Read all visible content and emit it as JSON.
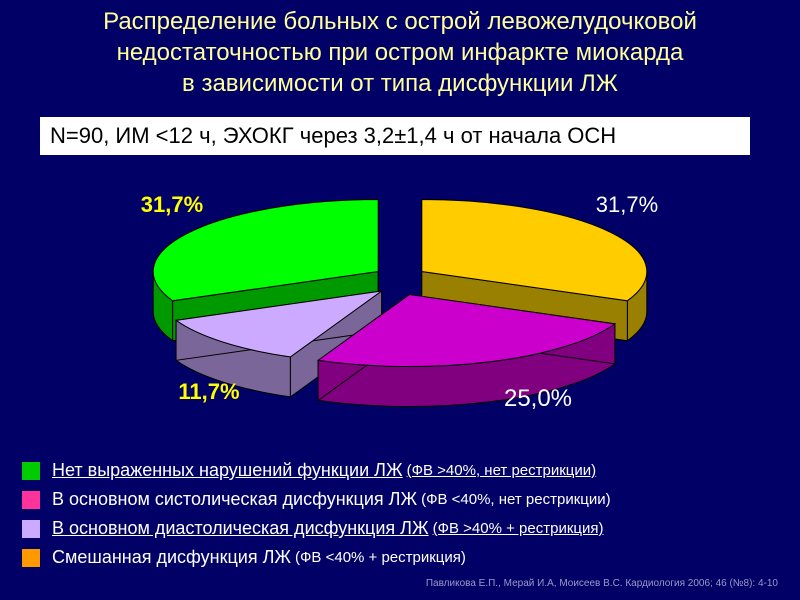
{
  "title_lines": [
    "Распределение больных с острой левожелудочковой",
    "недостаточностью при остром инфаркте миокарда",
    "в зависимости от типа дисфункции ЛЖ"
  ],
  "subtitle": "N=90, ИМ <12 ч, ЭХОКГ через 3,2±1,4 ч от начала ОСН",
  "chart_data": {
    "type": "pie",
    "style": "3d-exploded",
    "title": "",
    "slices": [
      {
        "label": "Нет выраженных нарушений функции ЛЖ (ФВ >40%, нет рестрикции)",
        "value": 31.7,
        "display": "31,7%",
        "color": "#ffcc00",
        "side_color": "#998000",
        "label_color": "#ffffff",
        "label_bold": false
      },
      {
        "label": "В основном систолическая дисфункция ЛЖ (ФВ <40%, нет рестрикции)",
        "value": 25.0,
        "display": "25,0%",
        "color": "#cc00cc",
        "side_color": "#800080",
        "label_color": "#ffffff",
        "label_bold": false
      },
      {
        "label": "В основном диастолическая дисфункция ЛЖ (ФВ >40% + рестрикция)",
        "value": 11.7,
        "display": "11,7%",
        "color": "#ccaaff",
        "side_color": "#7a6699",
        "label_color": "#ffff00",
        "label_bold": true
      },
      {
        "label": "Смешанная дисфункция ЛЖ (ФВ <40% + рестрикция)",
        "value": 31.7,
        "display": "31,7%",
        "color": "#00ff00",
        "side_color": "#009900",
        "label_color": "#ffff00",
        "label_bold": true
      }
    ]
  },
  "legend": [
    {
      "main": "Нет выраженных нарушений функции ЛЖ",
      "paren": "(ФВ >40%, нет рестрикции)",
      "color": "#00cc00",
      "underline": true
    },
    {
      "main": "В основном систолическая дисфункция ЛЖ",
      "paren": "(ФВ <40%, нет рестрикции)",
      "color": "#ff3399",
      "underline": false
    },
    {
      "main": "В основном диастолическая дисфункция ЛЖ",
      "paren": "(ФВ >40% + рестрикция)",
      "color": "#ccaaff",
      "underline": true
    },
    {
      "main": "Смешанная дисфункция ЛЖ",
      "paren": "(ФВ <40% + рестрикция)",
      "color": "#ff9900",
      "underline": false
    }
  ],
  "citation": "Павликова Е.П., Мерай И.А, Моисеев В.С. Кардиология 2006; 46 (№8): 4-10"
}
